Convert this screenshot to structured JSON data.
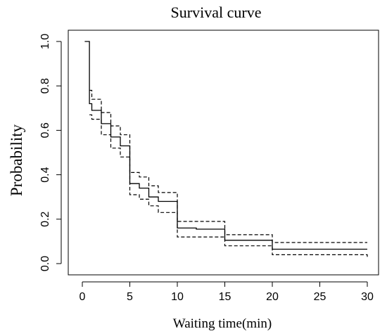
{
  "chart_data": {
    "type": "line",
    "title": "Survival curve",
    "xlabel": "Waiting time(min)",
    "ylabel": "Probability",
    "xlim": [
      0,
      30
    ],
    "ylim": [
      0,
      1
    ],
    "x_ticks": [
      0,
      5,
      10,
      15,
      20,
      25,
      30
    ],
    "x_tick_labels": [
      "0",
      "5",
      "10",
      "15",
      "20",
      "25",
      "30"
    ],
    "y_ticks": [
      0,
      0.2,
      0.4,
      0.6,
      0.8,
      1
    ],
    "y_tick_labels": [
      "0.0",
      "0.2",
      "0.4",
      "0.6",
      "0.8",
      "1.0"
    ],
    "grid": false,
    "legend": "none",
    "series": [
      {
        "role": "estimate",
        "style": "solid",
        "x": [
          0.25,
          0.75,
          1,
          2,
          3,
          4,
          5,
          6,
          7,
          8,
          10,
          12,
          15,
          20,
          30
        ],
        "y": [
          1.0,
          0.72,
          0.69,
          0.63,
          0.57,
          0.53,
          0.36,
          0.34,
          0.3,
          0.28,
          0.16,
          0.155,
          0.105,
          0.065,
          0.065
        ]
      },
      {
        "role": "upper",
        "style": "dashed",
        "x": [
          0.75,
          1,
          2,
          3,
          4,
          5,
          6,
          7,
          8,
          10,
          15,
          20,
          30
        ],
        "y": [
          0.78,
          0.74,
          0.68,
          0.62,
          0.58,
          0.41,
          0.39,
          0.35,
          0.32,
          0.19,
          0.13,
          0.095,
          0.095
        ]
      },
      {
        "role": "lower",
        "style": "dashed",
        "x": [
          0.75,
          1,
          2,
          3,
          4,
          5,
          6,
          7,
          8,
          10,
          15,
          20,
          30
        ],
        "y": [
          0.67,
          0.65,
          0.58,
          0.52,
          0.48,
          0.31,
          0.29,
          0.26,
          0.23,
          0.12,
          0.08,
          0.04,
          0.03
        ]
      }
    ]
  }
}
